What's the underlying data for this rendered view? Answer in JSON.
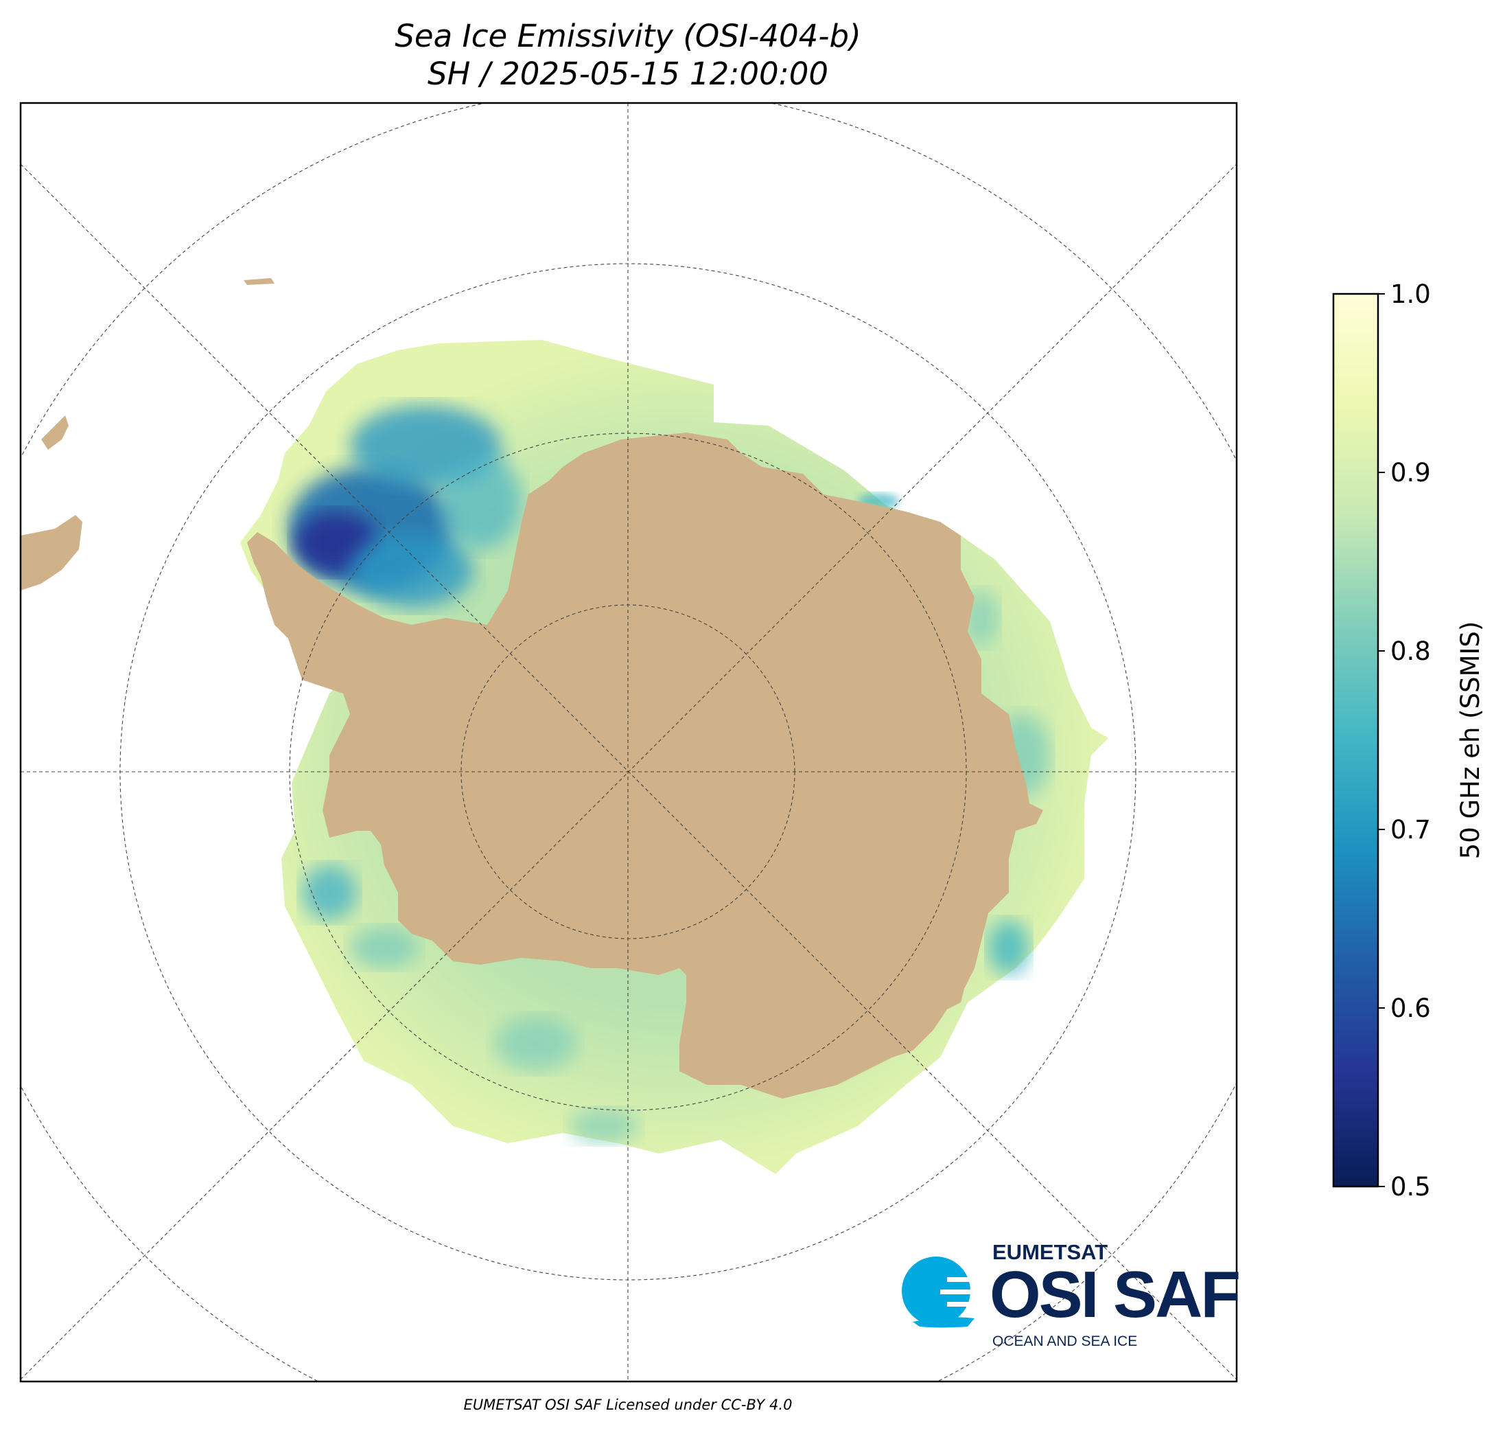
{
  "title": {
    "line1": "Sea Ice Emissivity (OSI-404-b)",
    "line2": "SH / 2025-05-15 12:00:00"
  },
  "colorbar": {
    "label": "50 GHz eh (SSMIS)",
    "ticks": [
      "0.5",
      "0.6",
      "0.7",
      "0.8",
      "0.9",
      "1.0"
    ],
    "min": 0.5,
    "max": 1.0,
    "colormap": "YlGnBu_r",
    "colors": [
      "#081d58",
      "#253494",
      "#225ea8",
      "#1d91c0",
      "#41b6c4",
      "#7fcdbb",
      "#c7e9b4",
      "#edf8b1",
      "#ffffd9"
    ]
  },
  "map": {
    "projection": "south polar stereographic",
    "land_color": "#cfb28a",
    "background_color": "#ffffff",
    "graticule": "dashed"
  },
  "logo": {
    "brand": "EUMETSAT",
    "name": "OSI SAF",
    "subtitle": "OCEAN AND SEA ICE"
  },
  "footer": "EUMETSAT OSI SAF Licensed under CC-BY 4.0"
}
